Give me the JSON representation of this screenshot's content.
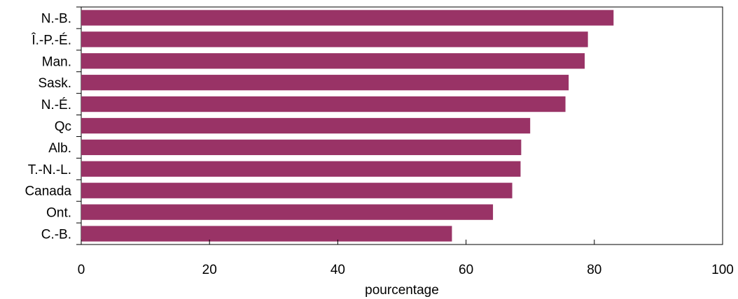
{
  "chart_data": {
    "type": "bar",
    "orientation": "horizontal",
    "categories": [
      "N.-B.",
      "Î.-P.-É.",
      "Man.",
      "Sask.",
      "N.-É.",
      "Qc",
      "Alb.",
      "T.-N.-L.",
      "Canada",
      "Ont.",
      "C.-B."
    ],
    "values": [
      83,
      79,
      78.5,
      76,
      75.5,
      70,
      68.6,
      68.5,
      67.2,
      64.2,
      57.8
    ],
    "xlabel": "pourcentage",
    "xlim": [
      0,
      100
    ],
    "xticks": [
      0,
      20,
      40,
      60,
      80,
      100
    ],
    "grid": false,
    "legend": "none",
    "bar_color": "#993366"
  }
}
